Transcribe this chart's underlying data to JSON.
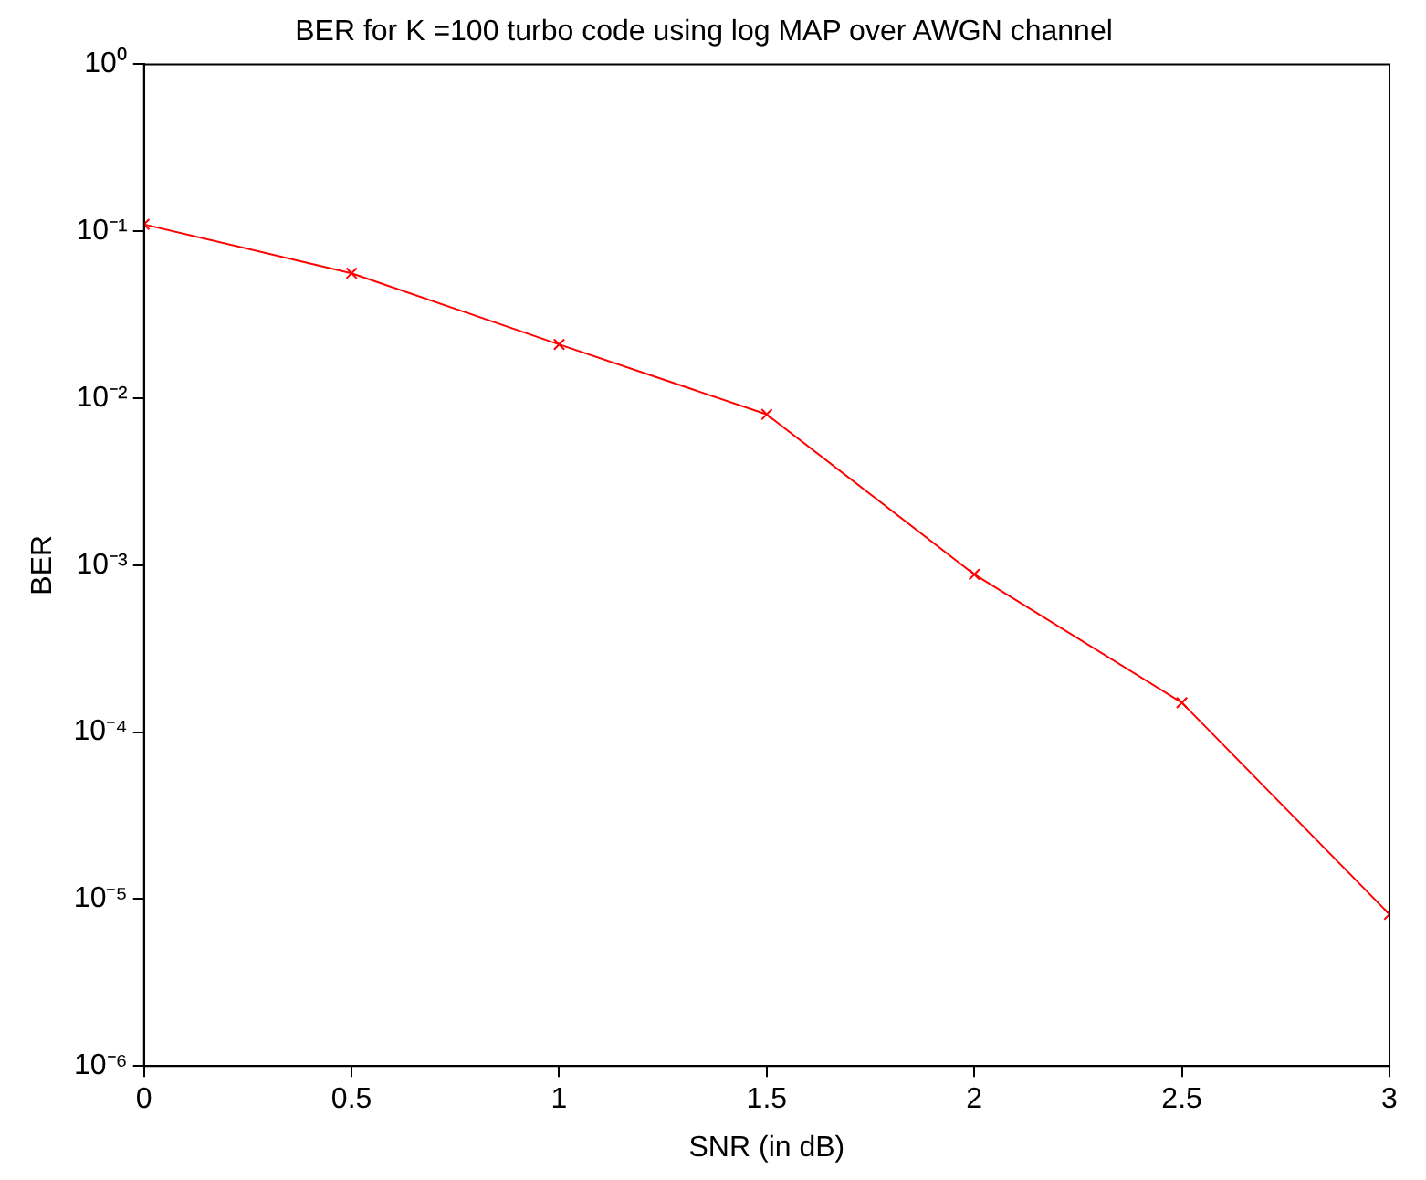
{
  "chart_data": {
    "type": "line",
    "title": "BER for K =100 turbo code using log MAP over AWGN channel",
    "xlabel": "SNR (in dB)",
    "ylabel": "BER",
    "x": [
      0,
      0.5,
      1,
      1.5,
      2,
      2.5,
      3
    ],
    "series": [
      {
        "color": "#ff0000",
        "values": [
          0.11,
          0.056,
          0.021,
          0.008,
          0.00088,
          0.00015,
          8.1e-06
        ]
      }
    ],
    "xlim": [
      0,
      3
    ],
    "xticks": [
      0,
      0.5,
      1,
      1.5,
      2,
      2.5,
      3
    ],
    "ylim": [
      1e-06,
      1
    ],
    "yticks": [
      {
        "value": 1e-06,
        "label": "10⁻⁶"
      },
      {
        "value": 1e-05,
        "label": "10⁻⁵"
      },
      {
        "value": 0.0001,
        "label": "10⁻⁴"
      },
      {
        "value": 0.001,
        "label": "10⁻³"
      },
      {
        "value": 0.01,
        "label": "10⁻²"
      },
      {
        "value": 0.1,
        "label": "10⁻¹"
      },
      {
        "value": 1,
        "label": "10⁰"
      }
    ],
    "log": "y",
    "grid": false,
    "legend": false,
    "marker": "cross",
    "line_style": "solid"
  }
}
